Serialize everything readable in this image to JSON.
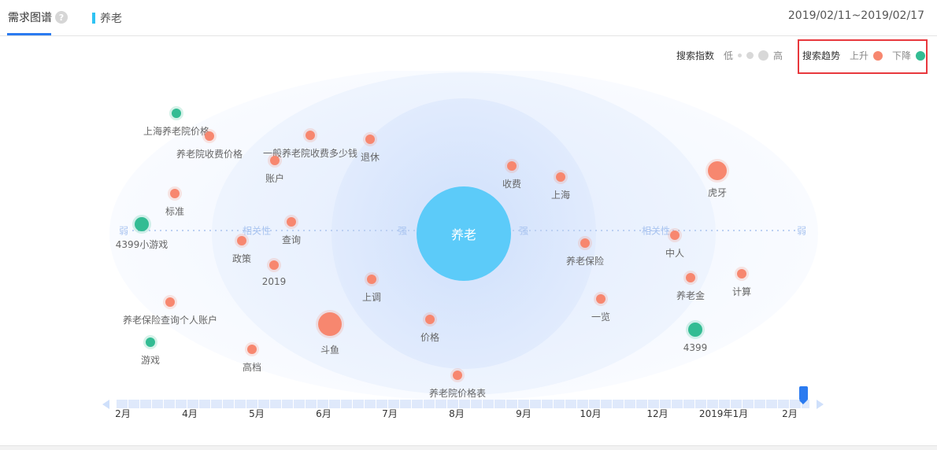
{
  "header": {
    "tab_label": "需求图谱",
    "help_icon": "?",
    "keyword": "养老",
    "date_range": "2019/02/11~2019/02/17"
  },
  "legend": {
    "index_label": "搜索指数",
    "low": "低",
    "high": "高",
    "trend_label": "搜索趋势",
    "up": "上升",
    "down": "下降",
    "colors": {
      "up": "#f7876f",
      "down": "#33bc93",
      "center": "#5ccbf9"
    }
  },
  "graph": {
    "center": "养老",
    "axis_labels": {
      "weak": "弱",
      "relevance": "相关性",
      "strong": "强"
    },
    "nodes": [
      {
        "label": "上海养老院价格",
        "trend": "down",
        "size": 1
      },
      {
        "label": "养老院收费价格",
        "trend": "up",
        "size": 1
      },
      {
        "label": "一般养老院收费多少钱",
        "trend": "up",
        "size": 1
      },
      {
        "label": "账户",
        "trend": "up",
        "size": 1
      },
      {
        "label": "退休",
        "trend": "up",
        "size": 1
      },
      {
        "label": "收费",
        "trend": "up",
        "size": 1
      },
      {
        "label": "上海",
        "trend": "up",
        "size": 1
      },
      {
        "label": "虎牙",
        "trend": "up",
        "size": 3
      },
      {
        "label": "标准",
        "trend": "up",
        "size": 1
      },
      {
        "label": "4399小游戏",
        "trend": "down",
        "size": 2
      },
      {
        "label": "查询",
        "trend": "up",
        "size": 1
      },
      {
        "label": "政策",
        "trend": "up",
        "size": 1
      },
      {
        "label": "2019",
        "trend": "up",
        "size": 1
      },
      {
        "label": "上调",
        "trend": "up",
        "size": 1
      },
      {
        "label": "养老保险",
        "trend": "up",
        "size": 1
      },
      {
        "label": "中人",
        "trend": "up",
        "size": 1
      },
      {
        "label": "养老金",
        "trend": "up",
        "size": 1
      },
      {
        "label": "计算",
        "trend": "up",
        "size": 1
      },
      {
        "label": "一览",
        "trend": "up",
        "size": 1
      },
      {
        "label": "养老保险查询个人账户",
        "trend": "up",
        "size": 1
      },
      {
        "label": "斗鱼",
        "trend": "up",
        "size": 4
      },
      {
        "label": "价格",
        "trend": "up",
        "size": 1
      },
      {
        "label": "4399",
        "trend": "down",
        "size": 2
      },
      {
        "label": "游戏",
        "trend": "down",
        "size": 1
      },
      {
        "label": "高档",
        "trend": "up",
        "size": 1
      },
      {
        "label": "养老院价格表",
        "trend": "up",
        "size": 1
      }
    ]
  },
  "timeline": {
    "ticks": [
      "2月",
      "4月",
      "5月",
      "6月",
      "7月",
      "8月",
      "9月",
      "10月",
      "12月",
      "2019年1月",
      "2月"
    ],
    "selected_position": 1.0
  }
}
